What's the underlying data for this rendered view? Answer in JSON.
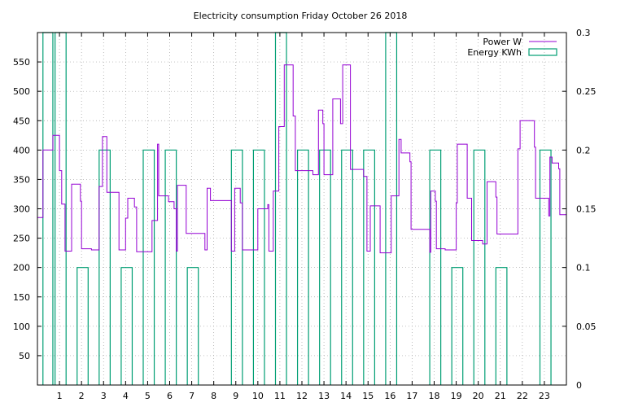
{
  "chart_data": {
    "type": "line",
    "title": "Electricity consumption Friday October 26 2018",
    "xlabel": "",
    "ylabel": "",
    "xlim": [
      0,
      24
    ],
    "ylim": [
      0,
      600
    ],
    "y2lim": [
      0,
      0.3
    ],
    "x_ticks": [
      1,
      2,
      3,
      4,
      5,
      6,
      7,
      8,
      9,
      10,
      11,
      12,
      13,
      14,
      15,
      16,
      17,
      18,
      19,
      20,
      21,
      22,
      23
    ],
    "y_ticks": [
      50,
      100,
      150,
      200,
      250,
      300,
      350,
      400,
      450,
      500,
      550
    ],
    "y2_ticks": [
      0,
      0.05,
      0.1,
      0.15,
      0.2,
      0.25,
      0.3
    ],
    "grid": true,
    "legend_position": "top-right",
    "series": [
      {
        "name": "Power W",
        "axis": "y",
        "color": "#9400d3",
        "style": "step-line",
        "points": [
          [
            0.0,
            285
          ],
          [
            0.25,
            285
          ],
          [
            0.25,
            400
          ],
          [
            0.7,
            400
          ],
          [
            0.7,
            425
          ],
          [
            1.0,
            425
          ],
          [
            1.0,
            365
          ],
          [
            1.1,
            365
          ],
          [
            1.1,
            308
          ],
          [
            1.25,
            308
          ],
          [
            1.25,
            228
          ],
          [
            1.55,
            228
          ],
          [
            1.55,
            342
          ],
          [
            1.95,
            342
          ],
          [
            1.95,
            313
          ],
          [
            2.0,
            313
          ],
          [
            2.0,
            232
          ],
          [
            2.45,
            232
          ],
          [
            2.45,
            230
          ],
          [
            2.8,
            230
          ],
          [
            2.8,
            338
          ],
          [
            2.95,
            338
          ],
          [
            2.95,
            423
          ],
          [
            3.15,
            423
          ],
          [
            3.15,
            328
          ],
          [
            3.7,
            328
          ],
          [
            3.7,
            230
          ],
          [
            4.0,
            230
          ],
          [
            4.0,
            284
          ],
          [
            4.1,
            284
          ],
          [
            4.1,
            318
          ],
          [
            4.4,
            318
          ],
          [
            4.4,
            303
          ],
          [
            4.5,
            303
          ],
          [
            4.5,
            227
          ],
          [
            5.2,
            227
          ],
          [
            5.2,
            280
          ],
          [
            5.45,
            280
          ],
          [
            5.45,
            410
          ],
          [
            5.5,
            410
          ],
          [
            5.5,
            322
          ],
          [
            5.95,
            322
          ],
          [
            5.95,
            312
          ],
          [
            6.2,
            312
          ],
          [
            6.2,
            300
          ],
          [
            6.3,
            300
          ],
          [
            6.3,
            228
          ],
          [
            6.35,
            228
          ],
          [
            6.35,
            340
          ],
          [
            6.75,
            340
          ],
          [
            6.75,
            258
          ],
          [
            7.6,
            258
          ],
          [
            7.6,
            230
          ],
          [
            7.7,
            230
          ],
          [
            7.7,
            335
          ],
          [
            7.85,
            335
          ],
          [
            7.85,
            314
          ],
          [
            8.8,
            314
          ],
          [
            8.8,
            228
          ],
          [
            8.95,
            228
          ],
          [
            8.95,
            335
          ],
          [
            9.2,
            335
          ],
          [
            9.2,
            310
          ],
          [
            9.3,
            310
          ],
          [
            9.3,
            230
          ],
          [
            10.0,
            230
          ],
          [
            10.0,
            300
          ],
          [
            10.45,
            300
          ],
          [
            10.45,
            307
          ],
          [
            10.5,
            307
          ],
          [
            10.5,
            228
          ],
          [
            10.7,
            228
          ],
          [
            10.7,
            330
          ],
          [
            10.95,
            330
          ],
          [
            10.95,
            440
          ],
          [
            11.2,
            440
          ],
          [
            11.2,
            545
          ],
          [
            11.6,
            545
          ],
          [
            11.6,
            458
          ],
          [
            11.7,
            458
          ],
          [
            11.7,
            365
          ],
          [
            12.5,
            365
          ],
          [
            12.5,
            358
          ],
          [
            12.75,
            358
          ],
          [
            12.75,
            468
          ],
          [
            12.95,
            468
          ],
          [
            12.95,
            445
          ],
          [
            13.0,
            445
          ],
          [
            13.0,
            358
          ],
          [
            13.4,
            358
          ],
          [
            13.4,
            487
          ],
          [
            13.75,
            487
          ],
          [
            13.75,
            445
          ],
          [
            13.85,
            445
          ],
          [
            13.85,
            545
          ],
          [
            14.2,
            545
          ],
          [
            14.2,
            367
          ],
          [
            14.8,
            367
          ],
          [
            14.8,
            355
          ],
          [
            14.95,
            355
          ],
          [
            14.95,
            228
          ],
          [
            15.1,
            228
          ],
          [
            15.1,
            305
          ],
          [
            15.55,
            305
          ],
          [
            15.55,
            225
          ],
          [
            16.05,
            225
          ],
          [
            16.05,
            322
          ],
          [
            16.4,
            322
          ],
          [
            16.4,
            418
          ],
          [
            16.5,
            418
          ],
          [
            16.5,
            395
          ],
          [
            16.9,
            395
          ],
          [
            16.9,
            380
          ],
          [
            16.95,
            380
          ],
          [
            16.95,
            265
          ],
          [
            17.8,
            265
          ],
          [
            17.8,
            226
          ],
          [
            17.85,
            226
          ],
          [
            17.85,
            330
          ],
          [
            18.05,
            330
          ],
          [
            18.05,
            313
          ],
          [
            18.1,
            313
          ],
          [
            18.1,
            232
          ],
          [
            18.5,
            232
          ],
          [
            18.5,
            230
          ],
          [
            19.0,
            230
          ],
          [
            19.0,
            310
          ],
          [
            19.05,
            310
          ],
          [
            19.05,
            410
          ],
          [
            19.5,
            410
          ],
          [
            19.5,
            318
          ],
          [
            19.7,
            318
          ],
          [
            19.7,
            246
          ],
          [
            20.2,
            246
          ],
          [
            20.2,
            240
          ],
          [
            20.4,
            240
          ],
          [
            20.4,
            346
          ],
          [
            20.8,
            346
          ],
          [
            20.8,
            320
          ],
          [
            20.85,
            320
          ],
          [
            20.85,
            257
          ],
          [
            21.8,
            257
          ],
          [
            21.8,
            402
          ],
          [
            21.9,
            402
          ],
          [
            21.9,
            450
          ],
          [
            22.55,
            450
          ],
          [
            22.55,
            405
          ],
          [
            22.6,
            405
          ],
          [
            22.6,
            318
          ],
          [
            23.2,
            318
          ],
          [
            23.2,
            288
          ],
          [
            23.25,
            288
          ],
          [
            23.25,
            388
          ],
          [
            23.35,
            388
          ],
          [
            23.35,
            378
          ],
          [
            23.65,
            378
          ],
          [
            23.65,
            368
          ],
          [
            23.7,
            368
          ],
          [
            23.7,
            290
          ],
          [
            24.0,
            290
          ]
        ]
      },
      {
        "name": "Energy KWh",
        "axis": "y2",
        "color": "#009e73",
        "style": "impulse-boxes",
        "boxes": [
          [
            0.25,
            0.7,
            0.3
          ],
          [
            0.8,
            1.3,
            0.3
          ],
          [
            1.8,
            2.3,
            0.1
          ],
          [
            2.8,
            3.3,
            0.2
          ],
          [
            3.8,
            4.3,
            0.1
          ],
          [
            4.8,
            5.3,
            0.2
          ],
          [
            5.8,
            6.3,
            0.2
          ],
          [
            6.8,
            7.3,
            0.1
          ],
          [
            8.8,
            9.3,
            0.2
          ],
          [
            9.8,
            10.3,
            0.2
          ],
          [
            10.8,
            11.3,
            0.3
          ],
          [
            11.8,
            12.3,
            0.2
          ],
          [
            12.8,
            13.3,
            0.2
          ],
          [
            13.8,
            14.3,
            0.2
          ],
          [
            14.8,
            15.3,
            0.2
          ],
          [
            15.8,
            16.3,
            0.3
          ],
          [
            17.8,
            18.3,
            0.2
          ],
          [
            18.8,
            19.3,
            0.1
          ],
          [
            19.8,
            20.3,
            0.2
          ],
          [
            20.8,
            21.3,
            0.1
          ],
          [
            22.8,
            23.3,
            0.2
          ]
        ]
      }
    ]
  }
}
